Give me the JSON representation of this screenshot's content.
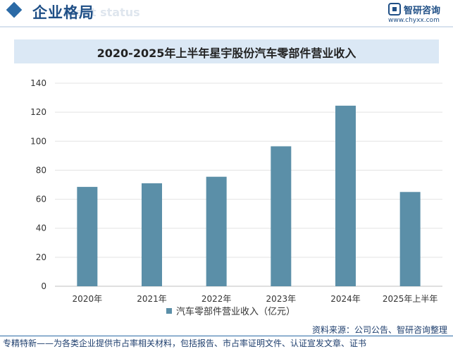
{
  "header": {
    "section_title": "企业格局",
    "section_subtitle": "ment status",
    "logo_name": "智研咨询",
    "logo_url": "www.chyxx.com"
  },
  "chart_data": {
    "type": "bar",
    "title": "2020-2025年上半年星宇股份汽车零部件营业收入",
    "categories": [
      "2020年",
      "2021年",
      "2022年",
      "2023年",
      "2024年",
      "2025年上半年"
    ],
    "series": [
      {
        "name": "汽车零部件营业收入（亿元）",
        "values": [
          68.5,
          71,
          75.5,
          96.5,
          124.5,
          65
        ]
      }
    ],
    "ylim": [
      0,
      140
    ],
    "yticks": [
      0,
      20,
      40,
      60,
      80,
      100,
      120,
      140
    ],
    "grid": true,
    "legend": "bottom",
    "bar_color": "#5b8fa8",
    "xlabel": "",
    "ylabel": ""
  },
  "footer": {
    "source": "资料来源：公司公告、智研咨询整理",
    "note": "专精特新——为各类企业提供市占率相关材料，包括报告、市占率证明文件、认证宣发文章、证书"
  }
}
